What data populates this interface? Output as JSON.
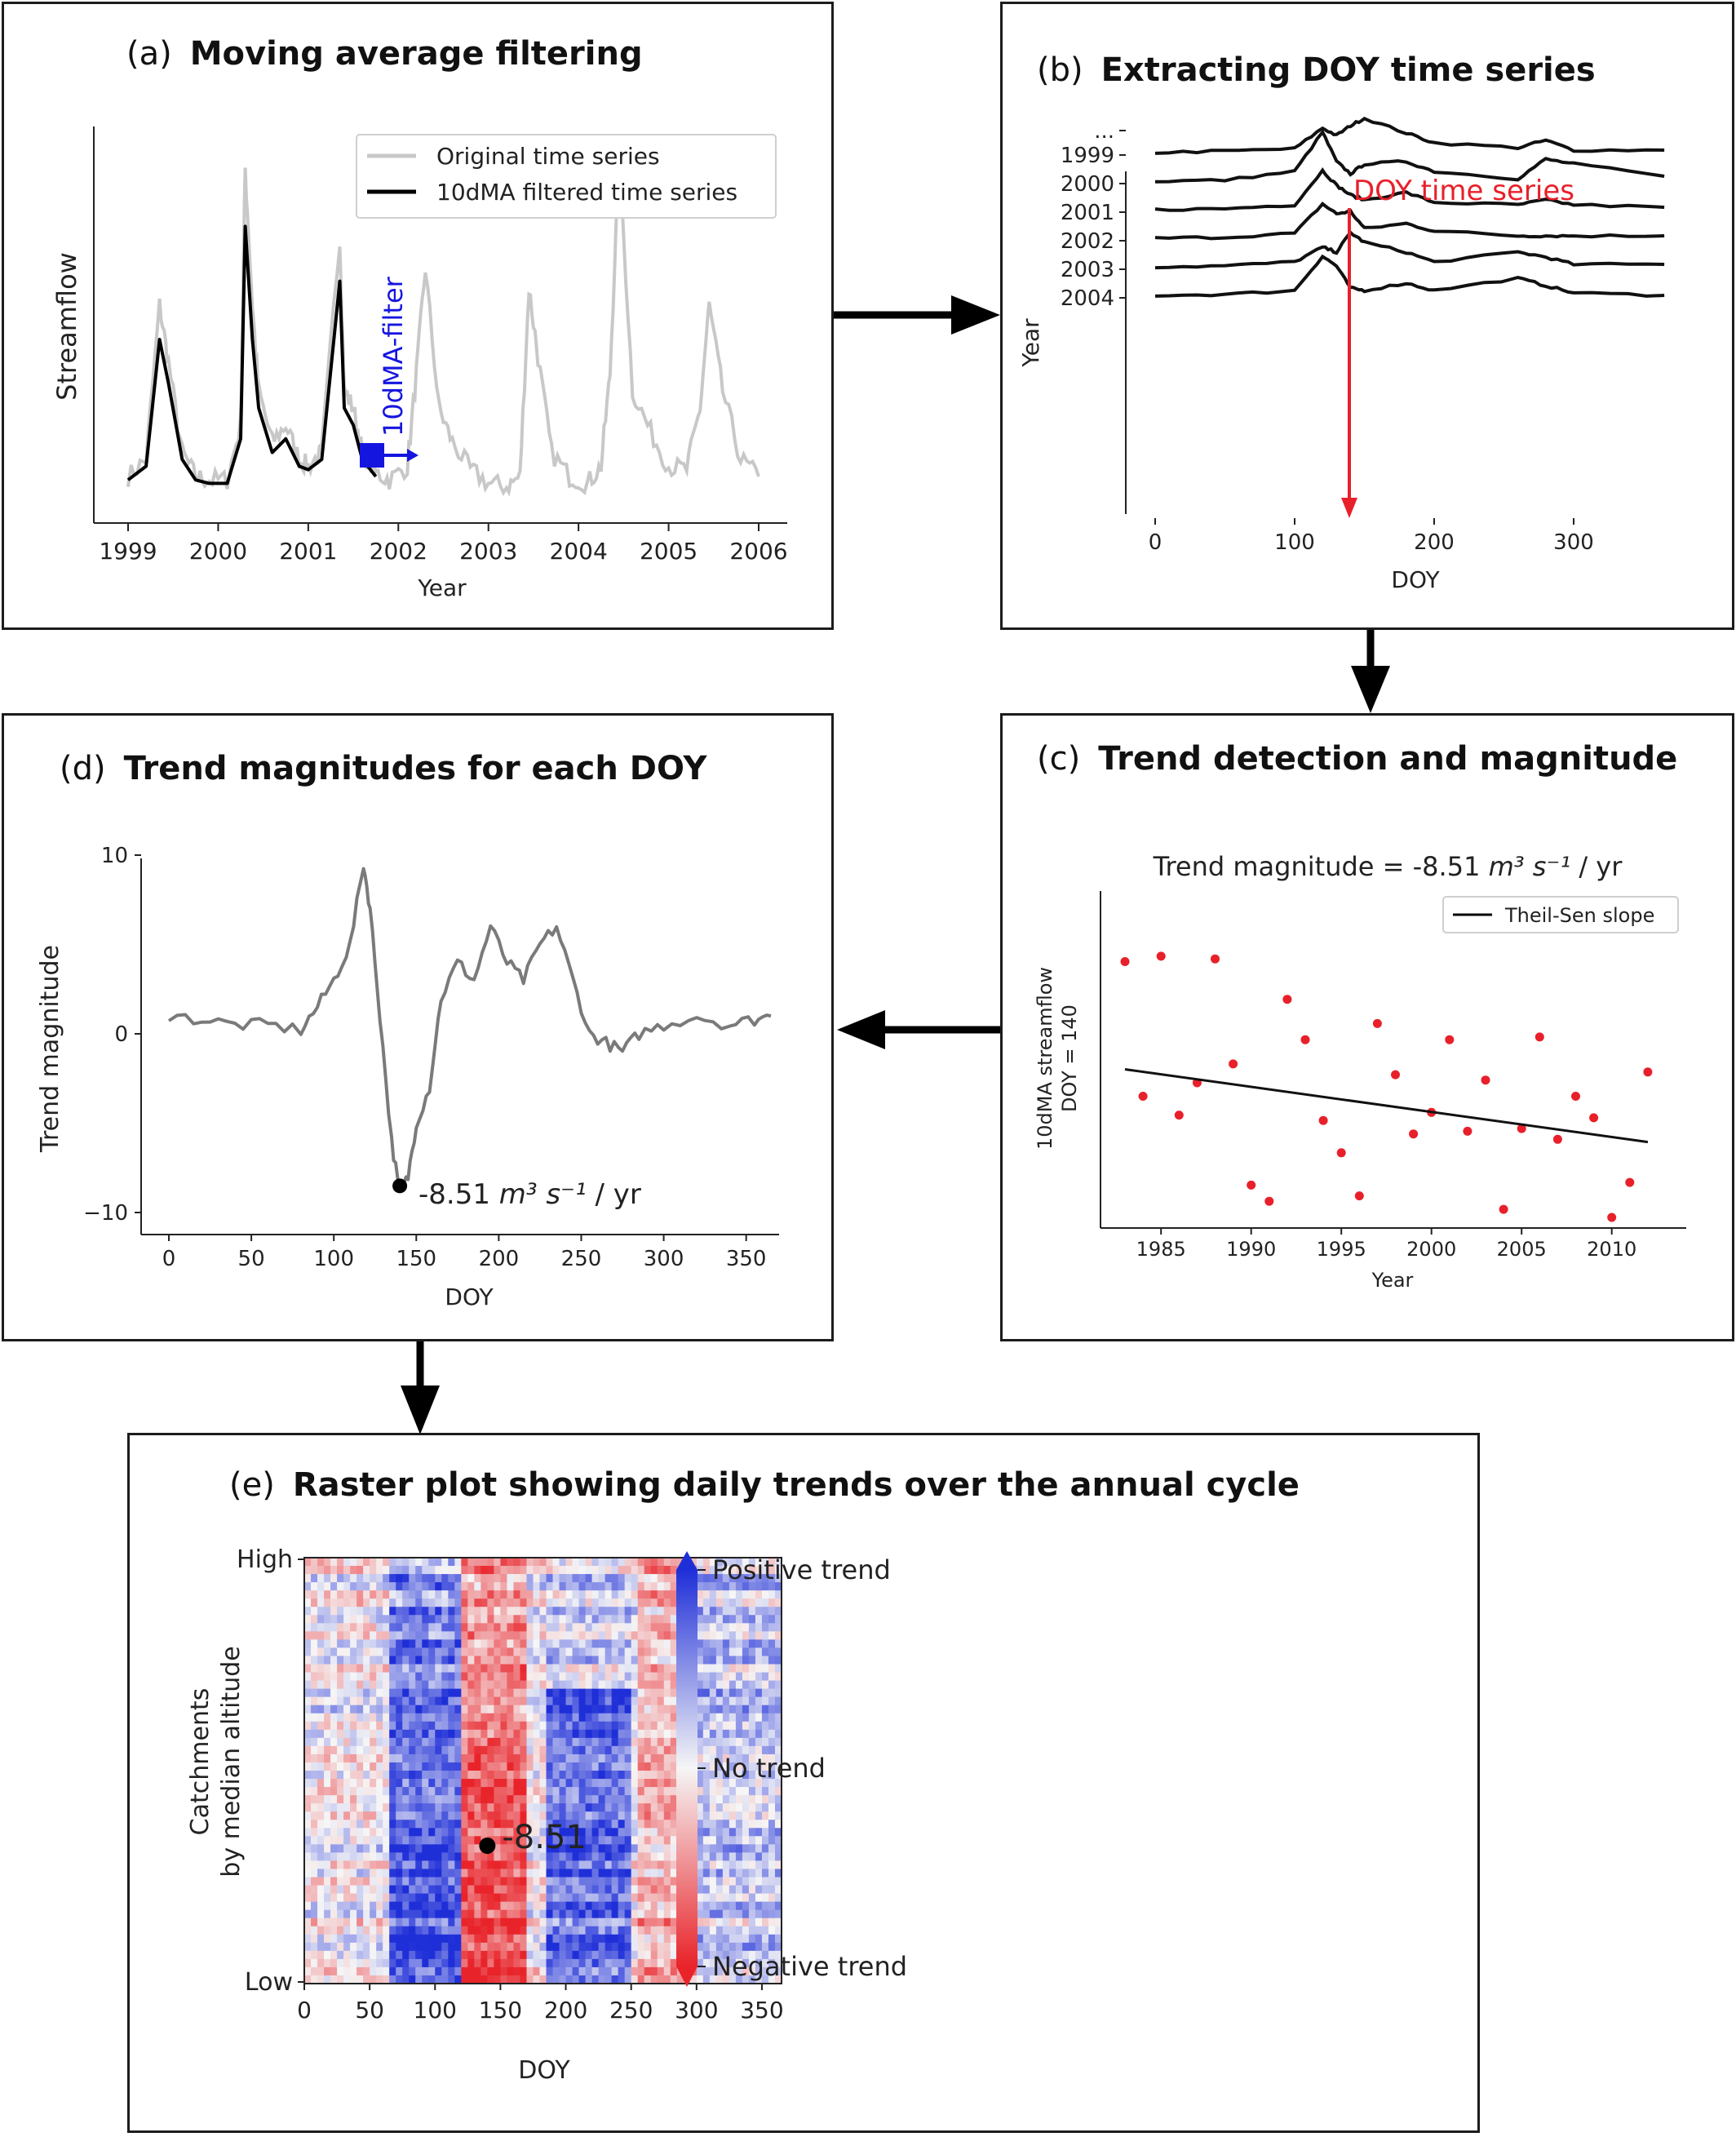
{
  "panel_a": {
    "letter": "(a)",
    "title": "Moving average filtering",
    "xlabel": "Year",
    "ylabel": "Streamflow",
    "xticks": [
      "1999",
      "2000",
      "2001",
      "2002",
      "2003",
      "2004",
      "2005",
      "2006"
    ],
    "legend": [
      "Original time series",
      "10dMA filtered time series"
    ],
    "filter_label": "10dMA-filter",
    "colors": {
      "original": "#c8c8c8",
      "filtered": "#000000",
      "filter": "#1515e0"
    }
  },
  "panel_b": {
    "letter": "(b)",
    "title": "Extracting DOY time series",
    "xlabel": "DOY",
    "ylabel": "Year",
    "years": [
      "...",
      "1999",
      "2000",
      "2001",
      "2002",
      "2003",
      "2004"
    ],
    "xticks": [
      "0",
      "100",
      "200",
      "300"
    ],
    "annotation": "DOY time series",
    "annotation_color": "#e8202a"
  },
  "panel_c": {
    "letter": "(c)",
    "title": "Trend detection and magnitude",
    "chart_title_prefix": "Trend magnitude = -8.51 ",
    "chart_title_unit": "m³ s⁻¹",
    "chart_title_suffix": " / yr",
    "legend": "Theil-Sen slope",
    "xlabel": "Year",
    "ylabel_line1": "10dMA streamflow",
    "ylabel_line2": "DOY = 140",
    "xticks": [
      "1985",
      "1990",
      "1995",
      "2000",
      "2005",
      "2010"
    ]
  },
  "panel_d": {
    "letter": "(d)",
    "title": "Trend magnitudes for each DOY",
    "xlabel": "DOY",
    "ylabel": "Trend magnitude",
    "xticks": [
      "0",
      "50",
      "100",
      "150",
      "200",
      "250",
      "300",
      "350"
    ],
    "yticks": [
      "10",
      "0",
      "−10"
    ],
    "annotation_prefix": "-8.51 ",
    "annotation_unit": "m³ s⁻¹",
    "annotation_suffix": " / yr"
  },
  "panel_e": {
    "letter": "(e)",
    "title": "Raster plot showing daily trends over the annual cycle",
    "xlabel": "DOY",
    "ylabel_line1": "Catchments",
    "ylabel_line2": "by median altitude",
    "yticks": [
      "High",
      "Low"
    ],
    "xticks": [
      "0",
      "50",
      "100",
      "150",
      "200",
      "250",
      "300",
      "350"
    ],
    "annotation": "-8.51",
    "colorbar": [
      "Positive trend",
      "No trend",
      "Negative trend"
    ],
    "colors": {
      "positive": "#1f2fd8",
      "neutral": "#f6f6f6",
      "negative": "#e8242a"
    }
  },
  "chart_data": [
    {
      "type": "line",
      "id": "panel_a",
      "xlabel": "Year",
      "ylabel": "Streamflow",
      "xlim": [
        1999,
        2006
      ],
      "series": [
        {
          "name": "Original time series",
          "x": [
            1999.0,
            1999.2,
            1999.35,
            1999.45,
            1999.6,
            1999.75,
            1999.9,
            2000.1,
            2000.25,
            2000.3,
            2000.38,
            2000.45,
            2000.6,
            2000.75,
            2000.9,
            2001.0,
            2001.15,
            2001.35,
            2001.4,
            2001.5,
            2001.6,
            2001.75,
            2001.9,
            2002.1,
            2002.2,
            2002.3,
            2002.45,
            2002.6,
            2002.8,
            2003.0,
            2003.2,
            2003.35,
            2003.45,
            2003.55,
            2003.7,
            2003.9,
            2004.1,
            2004.25,
            2004.35,
            2004.45,
            2004.6,
            2004.8,
            2005.0,
            2005.2,
            2005.35,
            2005.45,
            2005.6,
            2005.8,
            2006.0
          ],
          "y": [
            0.05,
            0.1,
            0.55,
            0.38,
            0.12,
            0.05,
            0.04,
            0.04,
            0.2,
            0.95,
            0.55,
            0.3,
            0.15,
            0.2,
            0.1,
            0.08,
            0.12,
            0.75,
            0.3,
            0.25,
            0.12,
            0.06,
            0.04,
            0.08,
            0.35,
            0.66,
            0.25,
            0.15,
            0.07,
            0.03,
            0.02,
            0.05,
            0.6,
            0.4,
            0.12,
            0.05,
            0.03,
            0.08,
            0.35,
            0.98,
            0.3,
            0.18,
            0.08,
            0.07,
            0.25,
            0.55,
            0.3,
            0.1,
            0.05
          ]
        },
        {
          "name": "10dMA filtered time series",
          "x": [
            1999.0,
            1999.2,
            1999.35,
            1999.45,
            1999.6,
            1999.75,
            1999.9,
            2000.1,
            2000.25,
            2000.3,
            2000.38,
            2000.45,
            2000.6,
            2000.75,
            2000.9,
            2001.0,
            2001.15,
            2001.35,
            2001.4,
            2001.5,
            2001.6,
            2001.75
          ],
          "y": [
            0.04,
            0.08,
            0.45,
            0.32,
            0.1,
            0.04,
            0.03,
            0.03,
            0.16,
            0.78,
            0.45,
            0.25,
            0.12,
            0.16,
            0.08,
            0.07,
            0.1,
            0.62,
            0.25,
            0.2,
            0.1,
            0.05
          ]
        }
      ]
    },
    {
      "type": "line",
      "id": "panel_b",
      "xlabel": "DOY",
      "ylabel": "Year",
      "xlim": [
        0,
        365
      ],
      "series": [
        {
          "name": "1999",
          "x": [
            0,
            50,
            100,
            120,
            130,
            140,
            150,
            180,
            200,
            260,
            280,
            300,
            365
          ],
          "y": [
            0,
            0.03,
            0.08,
            0.5,
            0.35,
            0.55,
            0.7,
            0.4,
            0.2,
            0.1,
            0.25,
            0.05,
            0.05
          ]
        },
        {
          "name": "2000",
          "x": [
            0,
            50,
            100,
            120,
            130,
            140,
            150,
            180,
            200,
            260,
            280,
            300,
            365
          ],
          "y": [
            0,
            0.02,
            0.2,
            1.0,
            0.4,
            0.15,
            0.35,
            0.4,
            0.2,
            0.05,
            0.45,
            0.35,
            0.1
          ]
        },
        {
          "name": "2001",
          "x": [
            0,
            50,
            100,
            120,
            130,
            140,
            150,
            180,
            200,
            260,
            280,
            300,
            365
          ],
          "y": [
            0,
            0.02,
            0.1,
            0.8,
            0.5,
            0.3,
            0.2,
            0.35,
            0.15,
            0.1,
            0.2,
            0.1,
            0.05
          ]
        },
        {
          "name": "2002",
          "x": [
            0,
            50,
            100,
            120,
            130,
            140,
            150,
            180,
            200,
            260,
            280,
            300,
            365
          ],
          "y": [
            0,
            0.02,
            0.1,
            0.7,
            0.5,
            0.55,
            0.2,
            0.3,
            0.15,
            0.05,
            0.05,
            0.05,
            0.05
          ]
        },
        {
          "name": "2003",
          "x": [
            0,
            50,
            100,
            120,
            130,
            140,
            150,
            180,
            200,
            260,
            280,
            300,
            365
          ],
          "y": [
            0,
            0.02,
            0.1,
            0.4,
            0.3,
            0.7,
            0.5,
            0.3,
            0.1,
            0.3,
            0.2,
            0.05,
            0.05
          ]
        },
        {
          "name": "2004",
          "x": [
            0,
            50,
            100,
            120,
            130,
            140,
            150,
            180,
            200,
            260,
            280,
            300,
            365
          ],
          "y": [
            0,
            0.02,
            0.1,
            0.8,
            0.6,
            0.15,
            0.1,
            0.25,
            0.1,
            0.35,
            0.2,
            0.05,
            0.0
          ]
        }
      ]
    },
    {
      "type": "scatter",
      "id": "panel_c",
      "xlabel": "Year",
      "xlim": [
        1982,
        2013
      ],
      "points": [
        [
          1983,
          0.95
        ],
        [
          1984,
          0.45
        ],
        [
          1985,
          0.97
        ],
        [
          1986,
          0.38
        ],
        [
          1987,
          0.5
        ],
        [
          1988,
          0.96
        ],
        [
          1989,
          0.57
        ],
        [
          1990,
          0.12
        ],
        [
          1991,
          0.06
        ],
        [
          1992,
          0.81
        ],
        [
          1993,
          0.66
        ],
        [
          1994,
          0.36
        ],
        [
          1995,
          0.24
        ],
        [
          1996,
          0.08
        ],
        [
          1997,
          0.72
        ],
        [
          1998,
          0.53
        ],
        [
          1999,
          0.31
        ],
        [
          2000,
          0.39
        ],
        [
          2001,
          0.66
        ],
        [
          2002,
          0.32
        ],
        [
          2003,
          0.51
        ],
        [
          2004,
          0.03
        ],
        [
          2005,
          0.33
        ],
        [
          2006,
          0.67
        ],
        [
          2007,
          0.29
        ],
        [
          2008,
          0.45
        ],
        [
          2009,
          0.37
        ],
        [
          2010,
          0.0
        ],
        [
          2011,
          0.13
        ],
        [
          2012,
          0.54
        ]
      ],
      "trend_line": {
        "x": [
          1983,
          2012
        ],
        "y": [
          0.55,
          0.28
        ],
        "name": "Theil-Sen slope"
      }
    },
    {
      "type": "line",
      "id": "panel_d",
      "xlabel": "DOY",
      "ylabel": "Trend magnitude",
      "xlim": [
        0,
        365
      ],
      "ylim": [
        -10,
        10
      ],
      "x": [
        0,
        20,
        40,
        60,
        80,
        90,
        100,
        110,
        118,
        122,
        128,
        135,
        140,
        145,
        150,
        158,
        165,
        175,
        185,
        195,
        205,
        215,
        225,
        235,
        245,
        255,
        265,
        275,
        285,
        300,
        320,
        340,
        355,
        365
      ],
      "y": [
        1,
        0.8,
        0.5,
        0.5,
        0.2,
        1.5,
        3,
        5,
        9.5,
        7,
        1,
        -6,
        -9,
        -8,
        -5,
        -3,
        2,
        4,
        3,
        6,
        4,
        3,
        5,
        6,
        3,
        0,
        -0.5,
        -1,
        0,
        0.5,
        1,
        0.5,
        0.8,
        1
      ],
      "highlight": {
        "x": 140,
        "y": -8.51
      }
    },
    {
      "type": "heatmap",
      "id": "panel_e",
      "xlabel": "DOY",
      "xlim": [
        0,
        365
      ],
      "highlight": {
        "x": 140,
        "value": -8.51
      }
    }
  ]
}
